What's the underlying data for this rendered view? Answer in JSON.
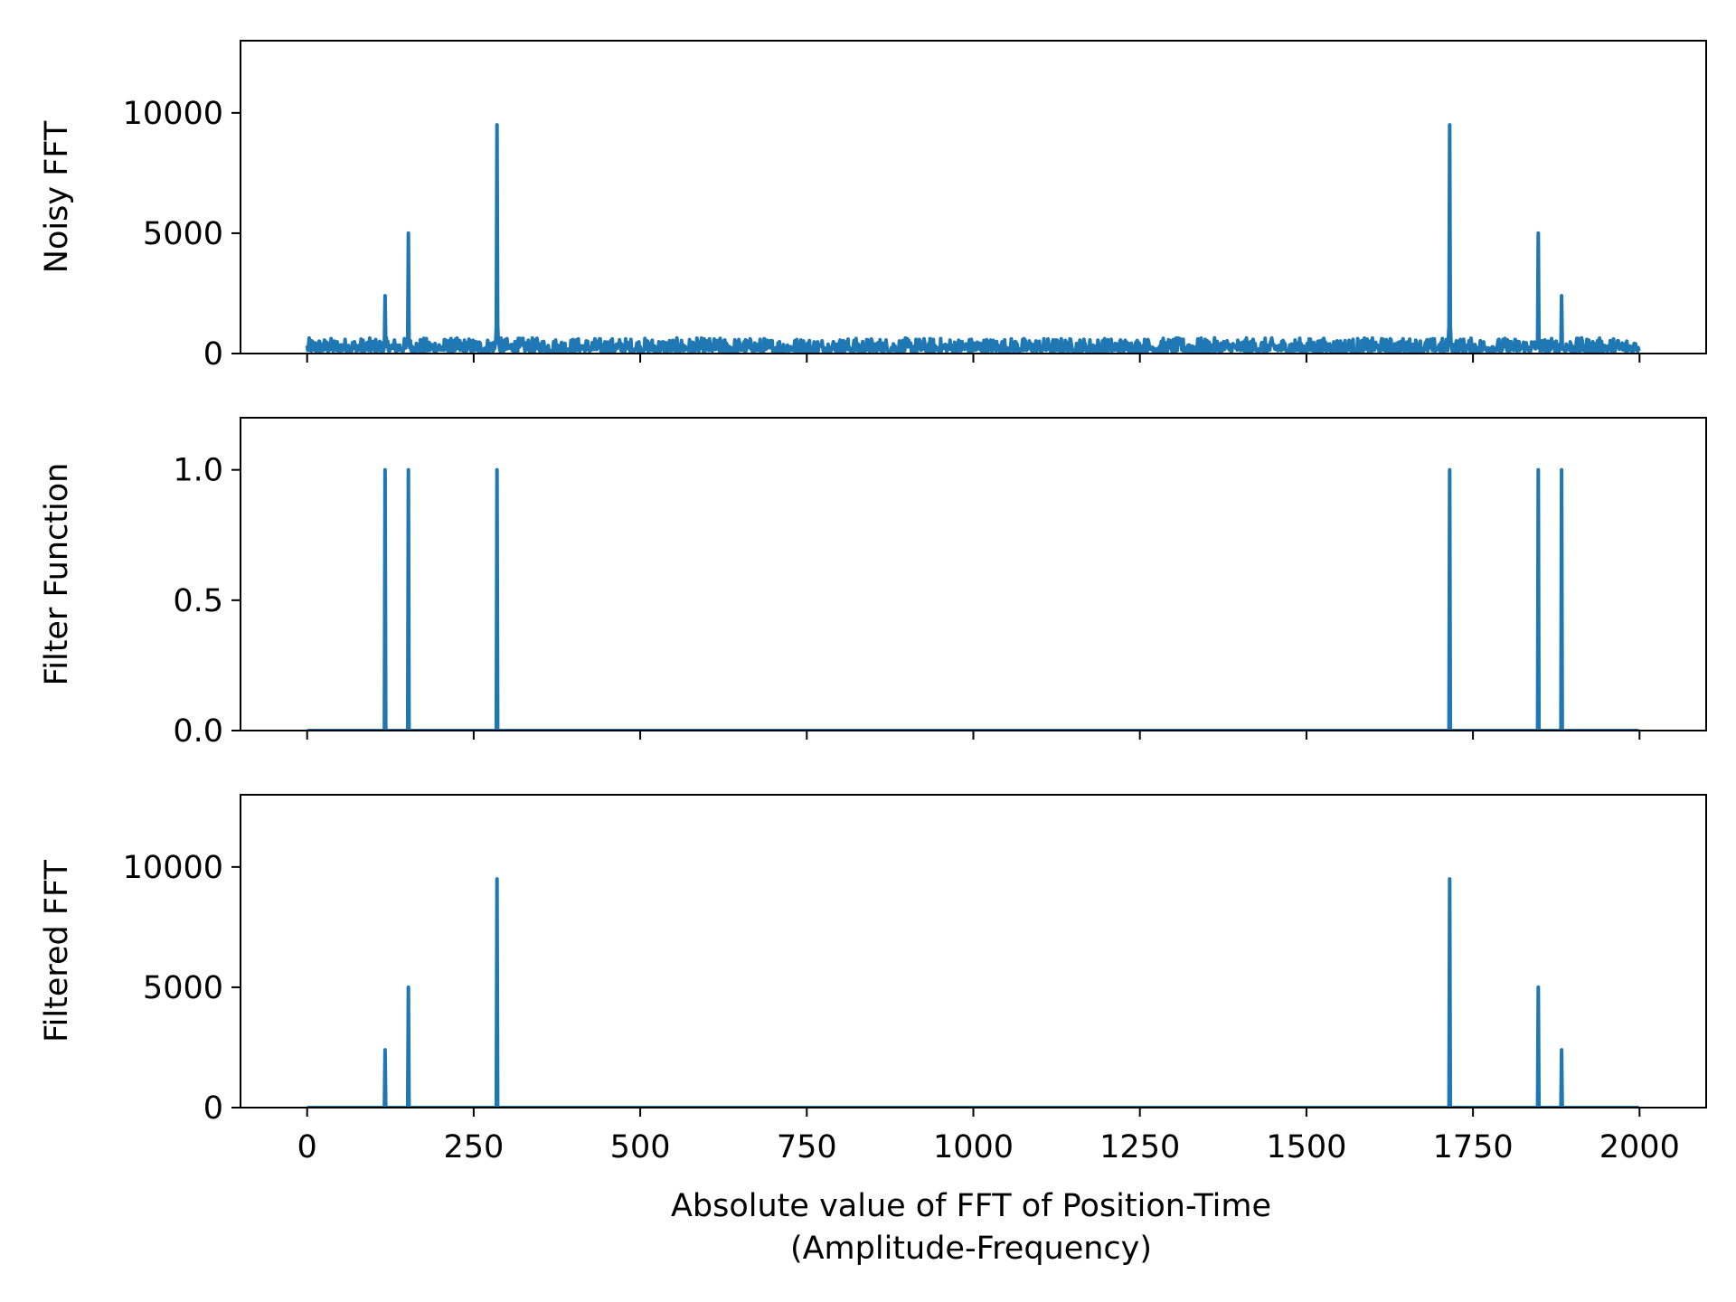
{
  "chart_data": {
    "type": "line",
    "xlabel_line1": "Absolute value of FFT of Position-Time",
    "xlabel_line2": "(Amplitude-Frequency)",
    "xlim": [
      -100,
      2100
    ],
    "xticks": [
      0,
      250,
      500,
      750,
      1000,
      1250,
      1500,
      1750,
      2000
    ],
    "xtick_labels": [
      "0",
      "250",
      "500",
      "750",
      "1000",
      "1250",
      "1500",
      "1750",
      "2000"
    ],
    "n_points": 2000,
    "line_color": "#1f77b4",
    "shared_x": true,
    "panels": [
      {
        "ylabel": "Noisy FFT",
        "ylim": [
          0,
          13000
        ],
        "yticks": [
          0,
          5000,
          10000
        ],
        "ytick_labels": [
          "0",
          "5000",
          "10000"
        ],
        "noise": {
          "min": 80,
          "max": 650
        },
        "peaks": [
          {
            "x": 117,
            "y": 2400
          },
          {
            "x": 152,
            "y": 5000
          },
          {
            "x": 285,
            "y": 9500
          },
          {
            "x": 1715,
            "y": 9500
          },
          {
            "x": 1848,
            "y": 5000
          },
          {
            "x": 1883,
            "y": 2400
          }
        ]
      },
      {
        "ylabel": "Filter Function",
        "ylim": [
          0,
          1.2
        ],
        "yticks": [
          0,
          0.5,
          1.0
        ],
        "ytick_labels": [
          "0.0",
          "0.5",
          "1.0"
        ],
        "baseline": 0,
        "peaks": [
          {
            "x": 117,
            "y": 1.0
          },
          {
            "x": 152,
            "y": 1.0
          },
          {
            "x": 285,
            "y": 1.0
          },
          {
            "x": 1715,
            "y": 1.0
          },
          {
            "x": 1848,
            "y": 1.0
          },
          {
            "x": 1883,
            "y": 1.0
          }
        ]
      },
      {
        "ylabel": "Filtered FFT",
        "ylim": [
          0,
          13000
        ],
        "yticks": [
          0,
          5000,
          10000
        ],
        "ytick_labels": [
          "0",
          "5000",
          "10000"
        ],
        "baseline": 0,
        "peaks": [
          {
            "x": 117,
            "y": 2400
          },
          {
            "x": 152,
            "y": 5000
          },
          {
            "x": 285,
            "y": 9500
          },
          {
            "x": 1715,
            "y": 9500
          },
          {
            "x": 1848,
            "y": 5000
          },
          {
            "x": 1883,
            "y": 2400
          }
        ]
      }
    ]
  }
}
